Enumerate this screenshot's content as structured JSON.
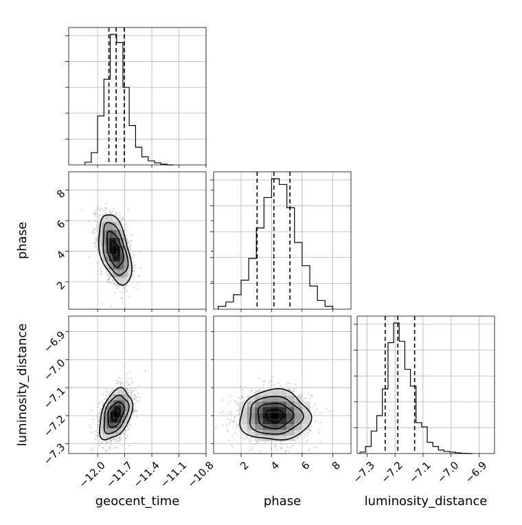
{
  "chart_data": {
    "type": "corner",
    "title": "",
    "parameters": [
      {
        "name": "geocent_time",
        "ticks": [
          -12.0,
          -11.7,
          -11.4,
          -11.1,
          -10.8
        ],
        "tick_labels": [
          "−12.0",
          "−11.7",
          "−11.4",
          "−11.1",
          "−10.8"
        ],
        "range": [
          -12.32,
          -10.8
        ]
      },
      {
        "name": "phase",
        "ticks": [
          2,
          4,
          6,
          8
        ],
        "tick_labels": [
          "2",
          "4",
          "6",
          "8"
        ],
        "range": [
          0.2,
          9.2
        ]
      },
      {
        "name": "luminosity_distance",
        "ticks": [
          -7.3,
          -7.2,
          -7.1,
          -7.0,
          -6.9
        ],
        "tick_labels": [
          "−7.3",
          "−7.2",
          "−7.1",
          "−7.0",
          "−6.9"
        ],
        "range": [
          -7.335,
          -6.845
        ]
      }
    ],
    "histograms": [
      {
        "parameter": "geocent_time",
        "bin_edges": [
          -12.14,
          -12.07,
          -12.0,
          -11.93,
          -11.86,
          -11.79,
          -11.72,
          -11.65,
          -11.58,
          -11.51,
          -11.44,
          -11.37,
          -11.3,
          -11.23,
          -11.16
        ],
        "counts": [
          0.02,
          0.09,
          0.36,
          0.63,
          0.96,
          0.9,
          0.57,
          0.29,
          0.13,
          0.06,
          0.03,
          0.015,
          0.005,
          0.0
        ],
        "quantiles": [
          -11.875,
          -11.795,
          -11.705
        ]
      },
      {
        "parameter": "phase",
        "bin_edges": [
          0.5,
          1.0,
          1.5,
          2.0,
          2.5,
          3.0,
          3.5,
          4.0,
          4.5,
          5.0,
          5.5,
          6.0,
          6.5,
          7.0,
          7.5,
          8.0
        ],
        "counts": [
          0.02,
          0.05,
          0.1,
          0.2,
          0.35,
          0.56,
          0.77,
          0.9,
          0.86,
          0.7,
          0.46,
          0.3,
          0.16,
          0.06,
          0.02
        ],
        "quantiles": [
          3.05,
          4.15,
          5.2
        ]
      },
      {
        "parameter": "luminosity_distance",
        "bin_edges": [
          -7.325,
          -7.305,
          -7.285,
          -7.265,
          -7.245,
          -7.225,
          -7.205,
          -7.185,
          -7.165,
          -7.145,
          -7.125,
          -7.105,
          -7.085,
          -7.065,
          -7.045,
          -7.025,
          -7.005,
          -6.985,
          -6.965,
          -6.945,
          -6.925
        ],
        "counts": [
          0.01,
          0.05,
          0.16,
          0.27,
          0.46,
          0.79,
          0.93,
          0.8,
          0.6,
          0.48,
          0.22,
          0.19,
          0.08,
          0.05,
          0.025,
          0.015,
          0.01,
          0.005,
          0.002,
          0.0
        ],
        "quantiles": [
          -7.235,
          -7.19,
          -7.13
        ]
      }
    ],
    "pairs": [
      {
        "x": "geocent_time",
        "y": "phase",
        "mean": [
          -11.81,
          4.1
        ],
        "sd": [
          0.09,
          1.15
        ],
        "rho": -0.45
      },
      {
        "x": "geocent_time",
        "y": "luminosity_distance",
        "mean": [
          -11.8,
          -7.195
        ],
        "sd": [
          0.09,
          0.045
        ],
        "rho": 0.4
      },
      {
        "x": "phase",
        "y": "luminosity_distance",
        "mean": [
          4.2,
          -7.2
        ],
        "sd": [
          1.15,
          0.045
        ],
        "rho": 0.0
      }
    ],
    "contour_levels": [
      0.5,
      1.0,
      1.5,
      2.0
    ],
    "grid": true
  }
}
